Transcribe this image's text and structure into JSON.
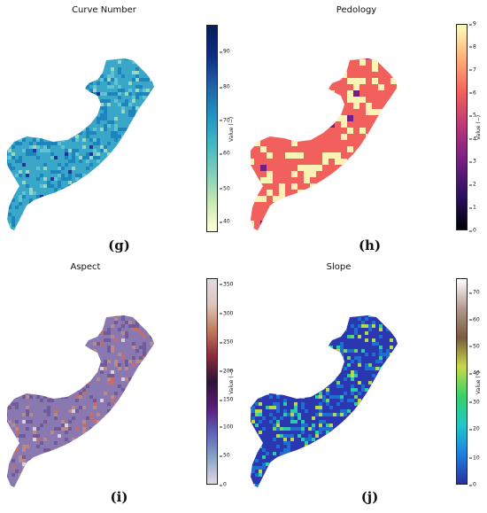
{
  "panels": [
    {
      "title": "Curve Number",
      "tag": "(g)",
      "colorbar": {
        "label": "Value (−)",
        "ticks": [
          "90",
          "80",
          "70",
          "60",
          "50",
          "40"
        ],
        "gradient": [
          "#ffffd9",
          "#c7e9b4",
          "#7fcdbb",
          "#41b6c4",
          "#1d91c0",
          "#225ea8",
          "#0c2c84",
          "#081d58"
        ]
      },
      "map_colors": [
        "#3aa6c8",
        "#1d84be",
        "#5fc3d2",
        "#97d8c4",
        "#253494"
      ]
    },
    {
      "title": "Pedology",
      "tag": "(h)",
      "colorbar": {
        "label": "Value (−)",
        "ticks": [
          "9",
          "8",
          "7",
          "6",
          "5",
          "4",
          "3",
          "2",
          "1",
          "0"
        ],
        "gradient": [
          "#000004",
          "#2c115f",
          "#721f81",
          "#b73779",
          "#f1605d",
          "#feb078",
          "#fcfdbf"
        ]
      },
      "map_colors": [
        "#f1605d",
        "#fbf3b4",
        "#721f81"
      ]
    },
    {
      "title": "Aspect",
      "tag": "(i)",
      "colorbar": {
        "label": "Value (−)",
        "ticks": [
          "350",
          "300",
          "250",
          "200",
          "150",
          "100",
          "50",
          "0"
        ],
        "gradient": [
          "#e2d9e2",
          "#8aa6c7",
          "#6060b8",
          "#5b1a78",
          "#2f1436",
          "#8b2a3f",
          "#c27c5e",
          "#dcc6bd",
          "#e2d9e2"
        ]
      },
      "map_colors": [
        "#8a78b0",
        "#6f5a9a",
        "#b98a8a",
        "#c56d6d",
        "#d9cfe0"
      ]
    },
    {
      "title": "Slope",
      "tag": "(j)",
      "colorbar": {
        "label": "Value (°)",
        "ticks": [
          "70",
          "60",
          "50",
          "40",
          "30",
          "20",
          "10",
          "0"
        ],
        "gradient": [
          "#2a2f9e",
          "#1d7fe0",
          "#1fc7c9",
          "#38d16a",
          "#c9d94a",
          "#7a5a3e",
          "#b39a90",
          "#ffffff"
        ]
      },
      "map_colors": [
        "#2a37b0",
        "#1f6fd0",
        "#2ec9a8",
        "#b8d94a",
        "#6fd36a"
      ]
    }
  ]
}
